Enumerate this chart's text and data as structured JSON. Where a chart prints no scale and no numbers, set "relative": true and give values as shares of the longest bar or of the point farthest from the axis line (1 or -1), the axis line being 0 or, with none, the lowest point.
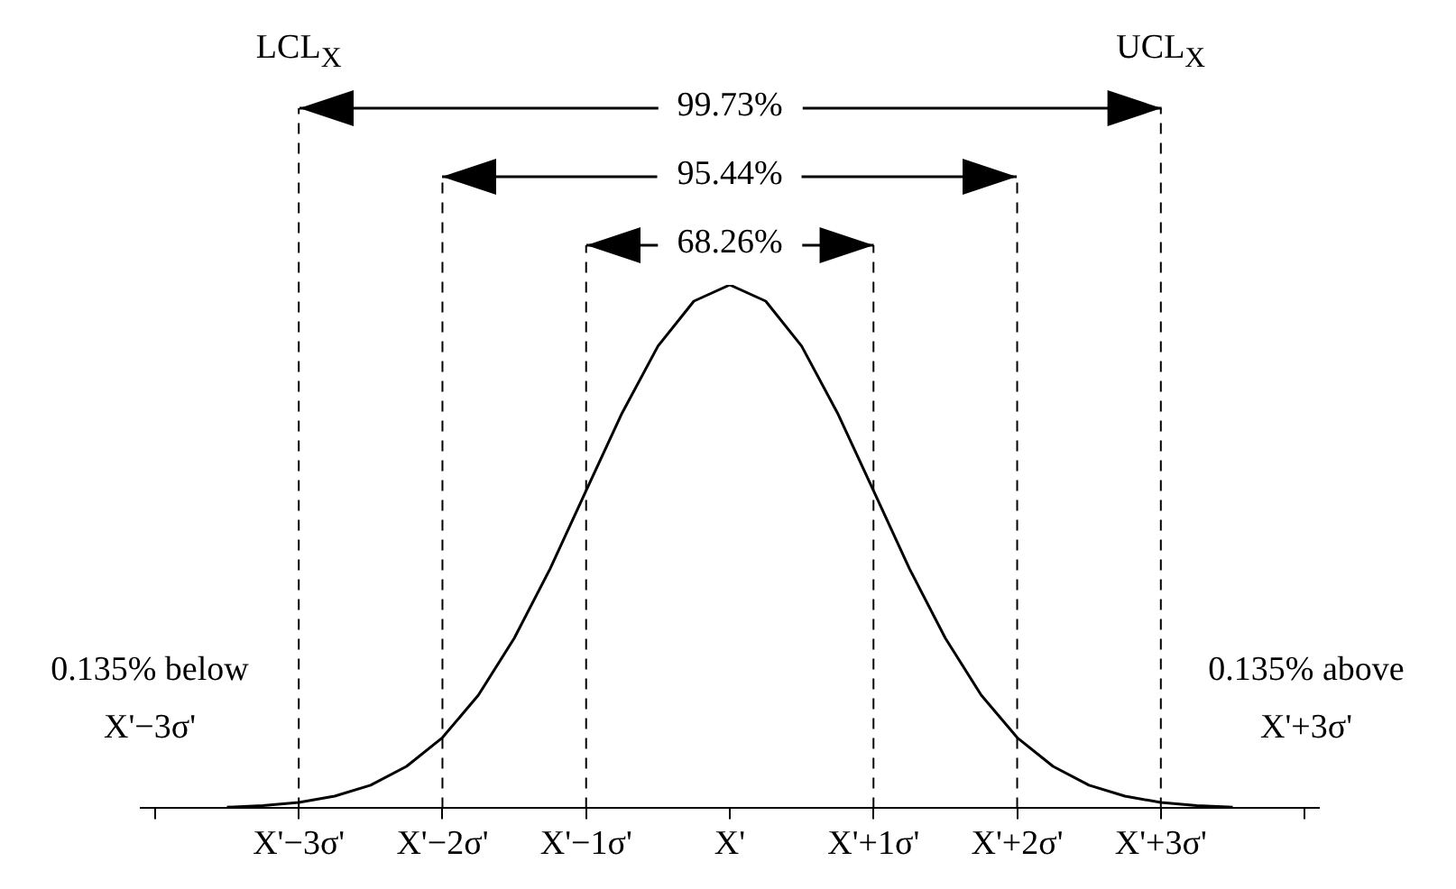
{
  "chart_data": {
    "type": "line",
    "relative": true,
    "x": [
      -3.5,
      -3.25,
      -3,
      -2.75,
      -2.5,
      -2.25,
      -2,
      -1.75,
      -1.5,
      -1.25,
      -1,
      -0.75,
      -0.5,
      -0.25,
      0,
      0.25,
      0.5,
      0.75,
      1,
      1.25,
      1.5,
      1.75,
      2,
      2.25,
      2.5,
      2.75,
      3,
      3.25,
      3.5
    ],
    "series": [
      {
        "color": "#000000",
        "values": [
          0.002,
          0.005,
          0.011,
          0.023,
          0.044,
          0.08,
          0.135,
          0.216,
          0.325,
          0.458,
          0.607,
          0.755,
          0.883,
          0.969,
          1,
          0.969,
          0.883,
          0.755,
          0.607,
          0.458,
          0.325,
          0.216,
          0.135,
          0.08,
          0.044,
          0.023,
          0.011,
          0.005,
          0.002
        ]
      }
    ],
    "xlim": [
      -4.1,
      4.1
    ],
    "xticks": [
      {
        "value": -4,
        "label": null
      },
      {
        "value": -3,
        "label": "X'−3σ'"
      },
      {
        "value": -2,
        "label": "X'−2σ'"
      },
      {
        "value": -1,
        "label": "X'−1σ'"
      },
      {
        "value": 0,
        "label": "X'"
      },
      {
        "value": 1,
        "label": "X'+1σ'"
      },
      {
        "value": 2,
        "label": "X'+2σ'"
      },
      {
        "value": 3,
        "label": "X'+3σ'"
      },
      {
        "value": 4,
        "label": null
      }
    ],
    "ref_lines": [
      {
        "axis": "x",
        "value": -3,
        "label": "LCL$_{X}$",
        "line_style": "dashed"
      },
      {
        "axis": "x",
        "value": -2,
        "label": null,
        "line_style": "dashed"
      },
      {
        "axis": "x",
        "value": -1,
        "label": null,
        "line_style": "dashed"
      },
      {
        "axis": "x",
        "value": 1,
        "label": null,
        "line_style": "dashed"
      },
      {
        "axis": "x",
        "value": 2,
        "label": null,
        "line_style": "dashed"
      },
      {
        "axis": "x",
        "value": 3,
        "label": "UCL$_{X}$",
        "line_style": "dashed"
      }
    ],
    "annotations": [
      "99.73%",
      "95.44%",
      "68.26%",
      "0.135% below X'−3σ'",
      "0.135% above X'+3σ'"
    ],
    "grid": false,
    "legend": false,
    "marker": "none",
    "line_style": "solid"
  }
}
